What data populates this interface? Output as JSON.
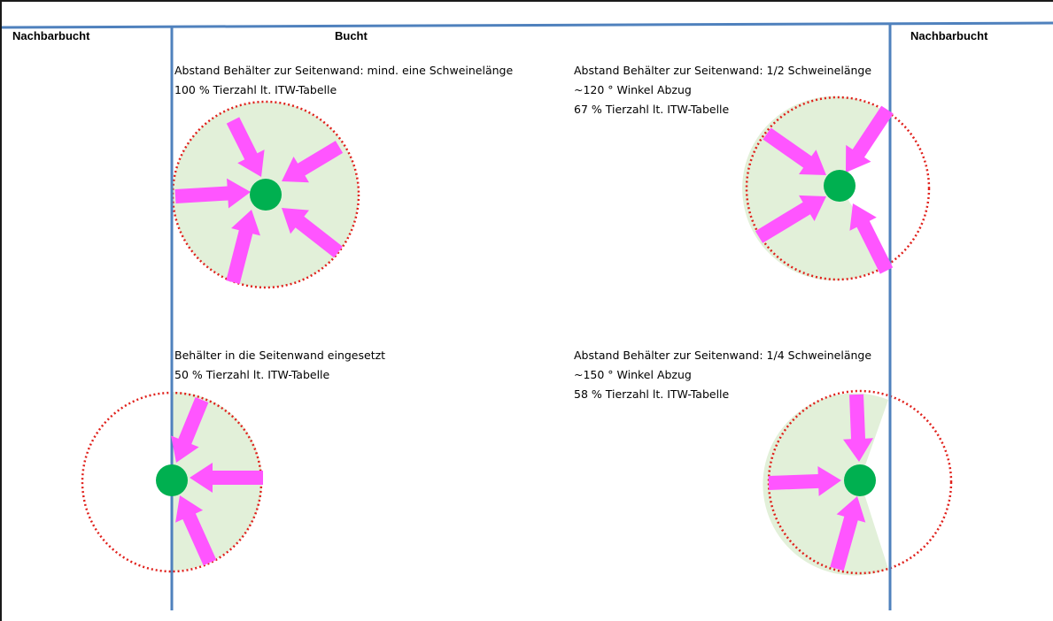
{
  "labels": {
    "left_neighbor": "Nachbarbucht",
    "pen": "Bucht",
    "right_neighbor": "Nachbarbucht"
  },
  "panels": [
    {
      "id": "top-left",
      "lines": [
        "Abstand Behälter zur Seitenwand: mind. eine Schweinelänge",
        "100 % Tierzahl lt. ITW-Tabelle"
      ]
    },
    {
      "id": "top-right",
      "lines": [
        "Abstand Behälter zur Seitenwand: 1/2 Schweinelänge",
        "~120 ° Winkel Abzug",
        "67 % Tierzahl lt. ITW-Tabelle"
      ]
    },
    {
      "id": "bottom-left",
      "lines": [
        "Behälter in die Seitenwand eingesetzt",
        "50 % Tierzahl lt. ITW-Tabelle"
      ]
    },
    {
      "id": "bottom-right",
      "lines": [
        "Abstand Behälter zur Seitenwand: 1/4 Schweinelänge",
        "~150 ° Winkel Abzug",
        "58 % Tierzahl lt. ITW-Tabelle"
      ]
    }
  ],
  "colors": {
    "wall": "#4f81bd",
    "access_area": "#e2f0d9",
    "boundary": "#e0201b",
    "arrow": "#ff55ff",
    "feeder": "#00b050"
  },
  "icons": {
    "feeder": "feeder-dot-icon",
    "arrow": "pig-approach-arrow-icon"
  }
}
